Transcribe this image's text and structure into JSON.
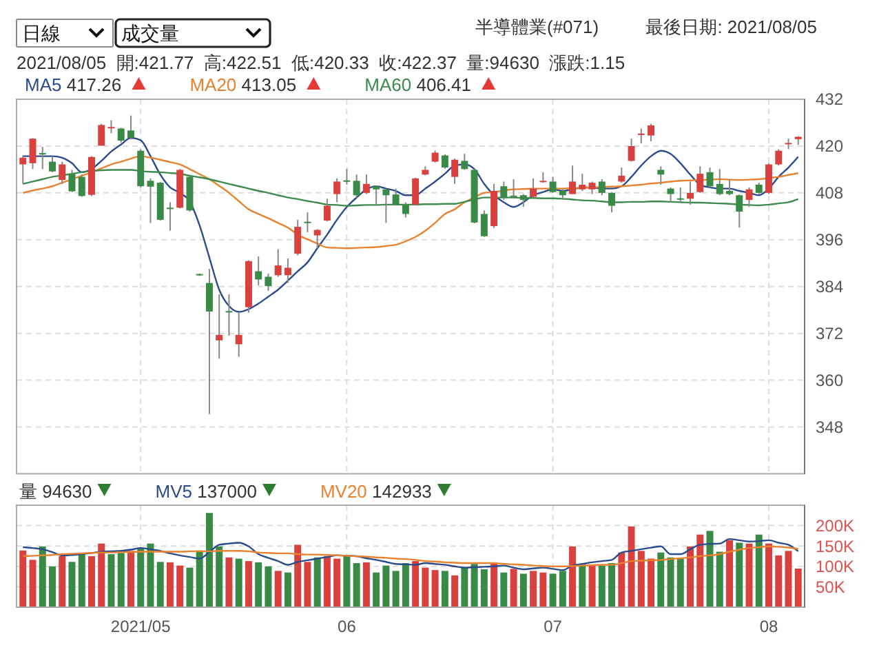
{
  "chart_data": [
    {
      "type": "candlestick",
      "title": "半導體業(#071)",
      "annotations": [
        "日線",
        "成交量",
        "最後日期: 2021/08/05",
        "2021/08/05  開:421.77  高:422.51  低:420.33  收:422.37  量:94630  漲跌:1.15"
      ],
      "categories": [
        null,
        null,
        null,
        null,
        null,
        null,
        null,
        null,
        null,
        null,
        null,
        null,
        "2021/05",
        null,
        null,
        null,
        null,
        null,
        null,
        null,
        null,
        null,
        null,
        null,
        null,
        null,
        null,
        null,
        null,
        null,
        null,
        null,
        null,
        "06",
        null,
        null,
        null,
        null,
        null,
        null,
        null,
        null,
        null,
        null,
        null,
        null,
        null,
        null,
        null,
        null,
        null,
        null,
        null,
        null,
        "07",
        null,
        null,
        null,
        null,
        null,
        null,
        null,
        null,
        null,
        null,
        null,
        null,
        null,
        null,
        null,
        null,
        null,
        null,
        null,
        null,
        null,
        "08",
        null,
        null,
        null
      ],
      "ohlc": [
        [
          415.3,
          417.6,
          410.3,
          417.0
        ],
        [
          415.6,
          422.0,
          414.1,
          421.9
        ],
        [
          418.2,
          419.8,
          414.1,
          418.0
        ],
        [
          416.0,
          417.4,
          413.3,
          413.5
        ],
        [
          411.3,
          416.0,
          410.3,
          415.3
        ],
        [
          412.9,
          413.9,
          408.2,
          408.4
        ],
        [
          412.1,
          412.7,
          407.0,
          407.2
        ],
        [
          407.5,
          417.4,
          407.2,
          417.2
        ],
        [
          420.1,
          425.7,
          420.0,
          425.4
        ],
        [
          424.6,
          426.6,
          423.3,
          424.9
        ],
        [
          424.5,
          424.7,
          420.9,
          421.4
        ],
        [
          424.0,
          427.8,
          421.7,
          422.1
        ],
        [
          418.8,
          419.2,
          409.4,
          409.7
        ],
        [
          411.1,
          411.7,
          400.3,
          409.6
        ],
        [
          410.6,
          410.8,
          400.9,
          401.1
        ],
        [
          404.2,
          405.6,
          398.3,
          404.0
        ],
        [
          404.2,
          414.1,
          404.0,
          413.9
        ],
        [
          412.1,
          412.3,
          403.2,
          403.5
        ],
        [
          387.2,
          387.3,
          386.7,
          387.0
        ],
        [
          384.9,
          388.5,
          351.3,
          377.6
        ],
        [
          370.2,
          382.0,
          365.5,
          371.6
        ],
        [
          377.7,
          382.0,
          371.4,
          377.5
        ],
        [
          369.2,
          377.3,
          366.0,
          371.6
        ],
        [
          378.7,
          390.7,
          377.3,
          390.5
        ],
        [
          387.9,
          391.7,
          384.3,
          385.8
        ],
        [
          386.5,
          387.3,
          382.9,
          384.1
        ],
        [
          386.9,
          393.6,
          386.5,
          389.4
        ],
        [
          386.9,
          391.2,
          384.9,
          388.8
        ],
        [
          392.4,
          401.1,
          392.0,
          399.3
        ],
        [
          400.6,
          403.0,
          397.9,
          400.4
        ],
        [
          397.1,
          398.7,
          393.8,
          398.5
        ],
        [
          400.9,
          406.5,
          400.7,
          404.7
        ],
        [
          407.7,
          411.7,
          405.6,
          410.9
        ],
        [
          411.2,
          414.1,
          410.1,
          411.0
        ],
        [
          411.1,
          412.7,
          406.8,
          407.4
        ],
        [
          408.0,
          412.7,
          407.7,
          410.3
        ],
        [
          409.7,
          409.9,
          405.0,
          408.9
        ],
        [
          408.9,
          409.1,
          400.3,
          407.4
        ],
        [
          407.6,
          409.1,
          404.7,
          405.0
        ],
        [
          405.0,
          405.6,
          401.7,
          402.6
        ],
        [
          405.0,
          411.9,
          404.8,
          411.7
        ],
        [
          412.7,
          414.8,
          412.5,
          413.9
        ],
        [
          416.0,
          418.8,
          415.8,
          418.3
        ],
        [
          417.6,
          417.9,
          414.2,
          414.5
        ],
        [
          412.1,
          416.8,
          410.3,
          416.5
        ],
        [
          416.2,
          418.0,
          413.9,
          414.1
        ],
        [
          413.9,
          414.1,
          400.2,
          400.4
        ],
        [
          402.6,
          403.5,
          396.7,
          396.9
        ],
        [
          399.5,
          410.3,
          399.0,
          408.5
        ],
        [
          409.7,
          410.9,
          406.2,
          406.8
        ],
        [
          407.3,
          411.5,
          406.5,
          407.1
        ],
        [
          407.4,
          407.7,
          404.4,
          406.2
        ],
        [
          407.0,
          411.7,
          406.8,
          409.1
        ],
        [
          410.9,
          413.3,
          410.6,
          411.1
        ],
        [
          410.9,
          412.1,
          408.0,
          408.2
        ],
        [
          408.5,
          408.9,
          406.2,
          407.4
        ],
        [
          407.7,
          415.0,
          407.7,
          410.9
        ],
        [
          408.9,
          412.9,
          408.5,
          410.1
        ],
        [
          408.9,
          410.9,
          407.7,
          410.6
        ],
        [
          410.9,
          411.5,
          407.4,
          408.0
        ],
        [
          408.0,
          408.2,
          403.0,
          404.7
        ],
        [
          410.9,
          414.5,
          410.6,
          412.4
        ],
        [
          416.2,
          421.9,
          416.0,
          420.0
        ],
        [
          423.0,
          424.5,
          420.7,
          423.2
        ],
        [
          422.7,
          425.7,
          421.2,
          425.3
        ],
        [
          413.9,
          414.8,
          410.1,
          412.7
        ],
        [
          409.1,
          409.4,
          405.6,
          407.7
        ],
        [
          406.6,
          409.4,
          405.6,
          406.4
        ],
        [
          406.5,
          410.9,
          405.0,
          408.0
        ],
        [
          408.2,
          414.8,
          408.0,
          412.9
        ],
        [
          413.3,
          414.5,
          409.4,
          409.7
        ],
        [
          410.3,
          414.1,
          407.4,
          407.7
        ],
        [
          408.5,
          411.5,
          407.4,
          407.7
        ],
        [
          407.4,
          407.6,
          399.1,
          403.2
        ],
        [
          406.2,
          409.4,
          404.4,
          408.9
        ],
        [
          410.1,
          410.6,
          407.7,
          408.0
        ],
        [
          408.0,
          415.6,
          407.7,
          415.3
        ],
        [
          415.3,
          419.2,
          415.0,
          418.8
        ],
        [
          420.5,
          421.9,
          419.2,
          420.8
        ],
        [
          421.77,
          422.51,
          420.33,
          422.37
        ]
      ],
      "colors": [
        "#d9413f",
        "#d9413f",
        "#3a8a47",
        "#3a8a47",
        "#d9413f",
        "#3a8a47",
        "#3a8a47",
        "#d9413f",
        "#d9413f",
        "#d9413f",
        "#3a8a47",
        "#3a8a47",
        "#3a8a47",
        "#3a8a47",
        "#3a8a47",
        "#3a8a47",
        "#d9413f",
        "#3a8a47",
        "#3a8a47",
        "#3a8a47",
        "#d9413f",
        "#3a8a47",
        "#d9413f",
        "#d9413f",
        "#3a8a47",
        "#3a8a47",
        "#d9413f",
        "#d9413f",
        "#d9413f",
        "#3a8a47",
        "#d9413f",
        "#d9413f",
        "#d9413f",
        "#3a8a47",
        "#3a8a47",
        "#d9413f",
        "#3a8a47",
        "#3a8a47",
        "#3a8a47",
        "#3a8a47",
        "#d9413f",
        "#d9413f",
        "#d9413f",
        "#3a8a47",
        "#d9413f",
        "#3a8a47",
        "#3a8a47",
        "#3a8a47",
        "#d9413f",
        "#3a8a47",
        "#3a8a47",
        "#3a8a47",
        "#d9413f",
        "#d9413f",
        "#3a8a47",
        "#3a8a47",
        "#d9413f",
        "#d9413f",
        "#d9413f",
        "#3a8a47",
        "#3a8a47",
        "#d9413f",
        "#d9413f",
        "#d9413f",
        "#d9413f",
        "#3a8a47",
        "#3a8a47",
        "#3a8a47",
        "#d9413f",
        "#d9413f",
        "#3a8a47",
        "#3a8a47",
        "#3a8a47",
        "#3a8a47",
        "#d9413f",
        "#3a8a47",
        "#d9413f",
        "#d9413f",
        "#d9413f",
        "#d9413f"
      ],
      "series": [
        {
          "name": "MA5 417.26",
          "type": "line",
          "color": "#2b4c8c",
          "values": [
            417.4,
            417.4,
            417.4,
            417.4,
            417.0,
            415.6,
            413.3,
            414.1,
            416.2,
            418.6,
            420.4,
            422.1,
            421.5,
            417.4,
            412.7,
            409.4,
            408.0,
            405.8,
            399.7,
            391.4,
            383.2,
            379.0,
            377.5,
            378.2,
            379.6,
            381.4,
            383.2,
            385.5,
            387.9,
            390.2,
            393.8,
            397.3,
            401.1,
            404.4,
            406.8,
            408.9,
            409.7,
            409.1,
            408.5,
            407.4,
            407.4,
            409.1,
            410.9,
            412.9,
            415.0,
            415.3,
            414.1,
            410.3,
            407.4,
            405.6,
            404.4,
            405.6,
            407.4,
            408.2,
            408.9,
            408.5,
            408.9,
            409.4,
            409.4,
            409.1,
            409.1,
            409.7,
            412.1,
            415.0,
            417.4,
            418.8,
            418.0,
            415.6,
            412.7,
            410.1,
            409.4,
            409.1,
            409.1,
            408.5,
            408.0,
            407.4,
            409.1,
            412.1,
            414.5,
            417.26
          ]
        },
        {
          "name": "MA20 413.05",
          "type": "line",
          "color": "#e8822f",
          "values": [
            408.0,
            408.6,
            409.1,
            409.7,
            410.6,
            411.5,
            412.4,
            413.3,
            414.3,
            415.3,
            416.0,
            416.8,
            417.4,
            417.0,
            416.5,
            415.9,
            415.3,
            414.1,
            412.8,
            411.5,
            409.8,
            408.0,
            405.9,
            403.8,
            402.6,
            401.5,
            400.3,
            399.1,
            397.3,
            396.1,
            395.0,
            394.0,
            393.9,
            393.8,
            393.9,
            394.0,
            394.1,
            394.4,
            394.7,
            395.6,
            396.7,
            398.3,
            400.3,
            402.6,
            403.8,
            405.6,
            406.8,
            408.0,
            408.2,
            408.6,
            408.9,
            409.0,
            409.1,
            409.1,
            409.1,
            409.1,
            409.2,
            409.3,
            409.4,
            409.5,
            409.6,
            409.7,
            409.9,
            410.1,
            410.4,
            410.6,
            410.9,
            411.1,
            411.2,
            411.3,
            411.4,
            411.5,
            411.4,
            411.3,
            411.4,
            411.5,
            411.8,
            412.1,
            412.6,
            413.05
          ]
        },
        {
          "name": "MA60 406.41",
          "type": "line",
          "color": "#3e8a4f",
          "values": [
            410.3,
            410.9,
            411.5,
            412.1,
            412.5,
            412.9,
            413.3,
            413.6,
            413.8,
            413.9,
            413.9,
            413.9,
            413.6,
            413.4,
            413.3,
            413.1,
            412.9,
            412.4,
            412.0,
            411.5,
            410.9,
            410.3,
            409.7,
            409.1,
            408.5,
            408.0,
            407.4,
            406.8,
            406.4,
            405.9,
            405.5,
            405.0,
            404.9,
            404.7,
            404.8,
            404.9,
            404.9,
            405.0,
            405.0,
            405.0,
            405.0,
            405.1,
            405.1,
            405.2,
            405.2,
            405.7,
            406.3,
            406.8,
            406.8,
            406.8,
            406.8,
            406.7,
            406.7,
            406.6,
            406.6,
            406.5,
            406.3,
            406.1,
            406.0,
            405.8,
            405.6,
            405.6,
            405.7,
            405.7,
            405.8,
            405.8,
            405.7,
            405.6,
            405.5,
            405.5,
            405.4,
            405.3,
            405.2,
            405.0,
            404.9,
            404.8,
            405.0,
            405.3,
            405.6,
            406.41
          ]
        }
      ],
      "ylim": [
        336,
        432
      ],
      "yticks": [
        348,
        360,
        372,
        384,
        396,
        408,
        420,
        432
      ],
      "grid": true,
      "legend": "top left",
      "tick_labels": "y"
    },
    {
      "type": "bar",
      "categories": [
        null,
        null,
        null,
        null,
        null,
        null,
        null,
        null,
        null,
        null,
        null,
        null,
        "2021/05",
        null,
        null,
        null,
        null,
        null,
        null,
        null,
        null,
        null,
        null,
        null,
        null,
        null,
        null,
        null,
        null,
        null,
        null,
        null,
        null,
        "06",
        null,
        null,
        null,
        null,
        null,
        null,
        null,
        null,
        null,
        null,
        null,
        null,
        null,
        null,
        null,
        null,
        null,
        null,
        null,
        null,
        "07",
        null,
        null,
        null,
        null,
        null,
        null,
        null,
        null,
        null,
        null,
        null,
        null,
        null,
        null,
        null,
        null,
        null,
        null,
        null,
        null,
        null,
        "08",
        null,
        null,
        null
      ],
      "series": [
        {
          "name": "量 94630",
          "values": [
            139000,
            116000,
            149000,
            100000,
            125000,
            111000,
            133000,
            125000,
            156000,
            130000,
            133000,
            138000,
            145000,
            156000,
            111000,
            110000,
            102000,
            97000,
            139000,
            231000,
            149000,
            122000,
            119000,
            113000,
            110000,
            100000,
            89000,
            85000,
            153000,
            111000,
            122000,
            125000,
            119000,
            125000,
            108000,
            110000,
            85000,
            102000,
            89000,
            108000,
            113000,
            97000,
            91000,
            89000,
            78000,
            97000,
            106000,
            93000,
            108000,
            85000,
            94000,
            82000,
            89000,
            85000,
            82000,
            89000,
            149000,
            104000,
            102000,
            102000,
            108000,
            134000,
            198000,
            138000,
            119000,
            134000,
            122000,
            119000,
            149000,
            178000,
            187000,
            136000,
            164000,
            158000,
            156000,
            178000,
            156000,
            127000,
            138000,
            94630
          ],
          "colors": [
            "#d9413f",
            "#d9413f",
            "#3a8a47",
            "#3a8a47",
            "#d9413f",
            "#3a8a47",
            "#3a8a47",
            "#d9413f",
            "#d9413f",
            "#3a8a47",
            "#3a8a47",
            "#d9413f",
            "#3a8a47",
            "#3a8a47",
            "#3a8a47",
            "#d9413f",
            "#d9413f",
            "#3a8a47",
            "#3a8a47",
            "#3a8a47",
            "#3a8a47",
            "#d9413f",
            "#3a8a47",
            "#d9413f",
            "#3a8a47",
            "#3a8a47",
            "#d9413f",
            "#3a8a47",
            "#d9413f",
            "#d9413f",
            "#3a8a47",
            "#d9413f",
            "#d9413f",
            "#3a8a47",
            "#3a8a47",
            "#d9413f",
            "#3a8a47",
            "#3a8a47",
            "#3a8a47",
            "#3a8a47",
            "#d9413f",
            "#d9413f",
            "#d9413f",
            "#3a8a47",
            "#d9413f",
            "#3a8a47",
            "#3a8a47",
            "#3a8a47",
            "#d9413f",
            "#3a8a47",
            "#d9413f",
            "#3a8a47",
            "#d9413f",
            "#d9413f",
            "#3a8a47",
            "#3a8a47",
            "#d9413f",
            "#3a8a47",
            "#d9413f",
            "#3a8a47",
            "#3a8a47",
            "#d9413f",
            "#d9413f",
            "#d9413f",
            "#d9413f",
            "#3a8a47",
            "#3a8a47",
            "#3a8a47",
            "#d9413f",
            "#d9413f",
            "#3a8a47",
            "#3a8a47",
            "#d9413f",
            "#3a8a47",
            "#d9413f",
            "#3a8a47",
            "#d9413f",
            "#d9413f",
            "#d9413f",
            "#d9413f"
          ]
        },
        {
          "name": "MV5 137000",
          "type": "line",
          "color": "#2b4c8c",
          "values": [
            147000,
            145000,
            142000,
            135000,
            127000,
            128000,
            130000,
            133000,
            136000,
            137000,
            138000,
            141000,
            145000,
            142000,
            138000,
            132000,
            127000,
            123000,
            119000,
            135000,
            153000,
            156000,
            158000,
            149000,
            130000,
            121000,
            113000,
            104000,
            111000,
            115000,
            119000,
            123000,
            127000,
            126000,
            125000,
            120000,
            116000,
            111000,
            106000,
            105000,
            104000,
            108000,
            106000,
            104000,
            100000,
            97000,
            98000,
            99000,
            100000,
            102000,
            97000,
            93000,
            95000,
            97000,
            94000,
            91000,
            102000,
            106000,
            110000,
            113000,
            116000,
            134000,
            138000,
            142000,
            146000,
            149000,
            130000,
            130000,
            142000,
            153000,
            155000,
            156000,
            167000,
            164000,
            161000,
            162000,
            164000,
            158000,
            153000,
            137000
          ]
        },
        {
          "name": "MV20 142933",
          "type": "line",
          "color": "#e8822f",
          "values": [
            125000,
            126000,
            127000,
            128000,
            130000,
            131000,
            132000,
            133000,
            134000,
            134000,
            135000,
            135000,
            136000,
            136000,
            136000,
            136000,
            136000,
            137000,
            137000,
            137000,
            138000,
            138000,
            138000,
            137000,
            134000,
            133000,
            132000,
            132000,
            130000,
            129000,
            129000,
            128000,
            127000,
            126000,
            125000,
            124000,
            122000,
            121000,
            119000,
            118000,
            116000,
            113000,
            112000,
            110000,
            109000,
            108000,
            108000,
            108000,
            108000,
            106000,
            105000,
            104000,
            102000,
            101000,
            100000,
            100000,
            101000,
            102000,
            103000,
            104000,
            104000,
            108000,
            113000,
            114000,
            115000,
            116000,
            118000,
            120000,
            122000,
            125000,
            127000,
            130000,
            136000,
            141000,
            145000,
            147000,
            149000,
            148000,
            146000,
            142933
          ]
        }
      ],
      "ylim": [
        0,
        250000
      ],
      "yticks": [
        {
          "value": 50000,
          "label": "50K"
        },
        {
          "value": 100000,
          "label": "100K"
        },
        {
          "value": 150000,
          "label": "150K"
        },
        {
          "value": 200000,
          "label": "200K"
        }
      ],
      "grid": true,
      "legend": "top left"
    }
  ]
}
